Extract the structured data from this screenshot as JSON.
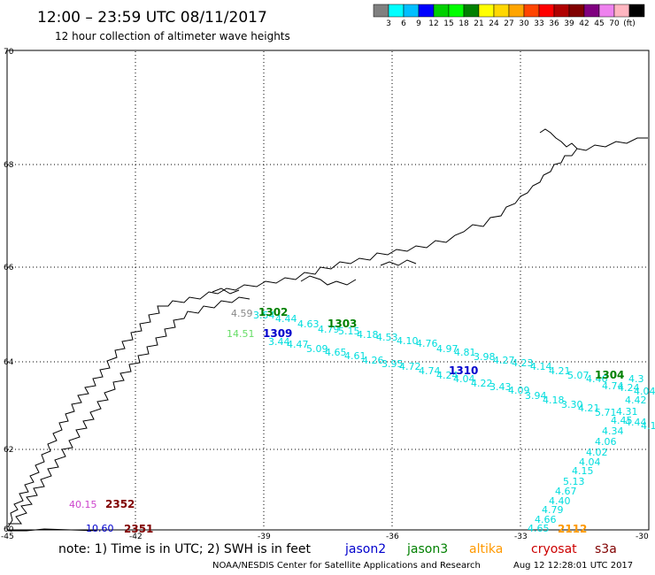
{
  "header": {
    "title": "12:00 – 23:59 UTC 08/11/2017",
    "subtitle": "12 hour collection of altimeter wave heights"
  },
  "color_scale": {
    "colors": [
      "#808080",
      "#00ffff",
      "#00bfff",
      "#0000ff",
      "#00d000",
      "#00ff00",
      "#008000",
      "#ffff00",
      "#ffd700",
      "#ffa500",
      "#ff4500",
      "#ff0000",
      "#b00000",
      "#800000",
      "#800080",
      "#ee82ee",
      "#ffb6c1",
      "#000000"
    ],
    "labels": [
      "3",
      "6",
      "9",
      "12",
      "15",
      "18",
      "21",
      "24",
      "27",
      "30",
      "33",
      "36",
      "39",
      "42",
      "45",
      "70",
      "(ft)"
    ]
  },
  "map": {
    "lat_labels": [
      "70",
      "68",
      "66",
      "64",
      "62",
      "60"
    ],
    "lon_labels": [
      "-45",
      "-42",
      "-39",
      "-36",
      "-33",
      "-30"
    ],
    "coastline_color": "#000000"
  },
  "satellites": {
    "jason2": {
      "name": "jason2",
      "color": "#0000cc"
    },
    "jason3": {
      "name": "jason3",
      "color": "#008000"
    },
    "altika": {
      "name": "altika",
      "color": "#ff9900"
    },
    "cryosat": {
      "name": "cryosat",
      "color": "#cc0000"
    },
    "s3a": {
      "name": "s3a",
      "color": "#800000"
    }
  },
  "pass_times": [
    {
      "text": "1302",
      "color": "#008000"
    },
    {
      "text": "1303",
      "color": "#008000"
    },
    {
      "text": "1309",
      "color": "#0000cc"
    },
    {
      "text": "1310",
      "color": "#0000cc"
    },
    {
      "text": "1304",
      "color": "#008000"
    },
    {
      "text": "2112",
      "color": "#ff9900"
    },
    {
      "text": "2352",
      "color": "#800000"
    },
    {
      "text": "2351",
      "color": "#800000"
    }
  ],
  "wave_heights": [
    {
      "text": "4.59",
      "color": "#888888"
    },
    {
      "text": "3.54",
      "color": "#00dddd"
    },
    {
      "text": "4.44",
      "color": "#00dddd"
    },
    {
      "text": "4.63",
      "color": "#00dddd"
    },
    {
      "text": "4.79",
      "color": "#00dddd"
    },
    {
      "text": "5.15",
      "color": "#00dddd"
    },
    {
      "text": "4.18",
      "color": "#00dddd"
    },
    {
      "text": "4.53",
      "color": "#00dddd"
    },
    {
      "text": "4.10",
      "color": "#00dddd"
    },
    {
      "text": "4.76",
      "color": "#00dddd"
    },
    {
      "text": "4.97",
      "color": "#00dddd"
    },
    {
      "text": "4.81",
      "color": "#00dddd"
    },
    {
      "text": "3.98",
      "color": "#00dddd"
    },
    {
      "text": "4.27",
      "color": "#00dddd"
    },
    {
      "text": "4.23",
      "color": "#00dddd"
    },
    {
      "text": "4.14",
      "color": "#00dddd"
    },
    {
      "text": "4.21",
      "color": "#00dddd"
    },
    {
      "text": "5.07",
      "color": "#00dddd"
    },
    {
      "text": "4.46",
      "color": "#00dddd"
    },
    {
      "text": "4.3",
      "color": "#00dddd"
    },
    {
      "text": "14.51",
      "color": "#66dd66"
    },
    {
      "text": "3.44",
      "color": "#00dddd"
    },
    {
      "text": "4.47",
      "color": "#00dddd"
    },
    {
      "text": "5.09",
      "color": "#00dddd"
    },
    {
      "text": "4.65",
      "color": "#00dddd"
    },
    {
      "text": "4.61",
      "color": "#00dddd"
    },
    {
      "text": "4.26",
      "color": "#00dddd"
    },
    {
      "text": "3.95",
      "color": "#00dddd"
    },
    {
      "text": "4.72",
      "color": "#00dddd"
    },
    {
      "text": "4.74",
      "color": "#00dddd"
    },
    {
      "text": "4.24",
      "color": "#00dddd"
    },
    {
      "text": "4.04",
      "color": "#00dddd"
    },
    {
      "text": "4.22",
      "color": "#00dddd"
    },
    {
      "text": "3.43",
      "color": "#00dddd"
    },
    {
      "text": "4.09",
      "color": "#00dddd"
    },
    {
      "text": "3.94",
      "color": "#00dddd"
    },
    {
      "text": "4.18",
      "color": "#00dddd"
    },
    {
      "text": "3.30",
      "color": "#00dddd"
    },
    {
      "text": "4.21",
      "color": "#00dddd"
    },
    {
      "text": "5.71",
      "color": "#00dddd"
    },
    {
      "text": "4.74",
      "color": "#00dddd"
    },
    {
      "text": "4.24",
      "color": "#00dddd"
    },
    {
      "text": "4.04",
      "color": "#00dddd"
    },
    {
      "text": "4.42",
      "color": "#00dddd"
    },
    {
      "text": "4.31",
      "color": "#00dddd"
    },
    {
      "text": "4.45",
      "color": "#00dddd"
    },
    {
      "text": "4.44",
      "color": "#00dddd"
    },
    {
      "text": "4.1",
      "color": "#00dddd"
    },
    {
      "text": "4.34",
      "color": "#00dddd"
    },
    {
      "text": "4.06",
      "color": "#00dddd"
    },
    {
      "text": "4.02",
      "color": "#00dddd"
    },
    {
      "text": "4.04",
      "color": "#00dddd"
    },
    {
      "text": "4.15",
      "color": "#00dddd"
    },
    {
      "text": "5.13",
      "color": "#00dddd"
    },
    {
      "text": "4.67",
      "color": "#00dddd"
    },
    {
      "text": "4.40",
      "color": "#00dddd"
    },
    {
      "text": "4.79",
      "color": "#00dddd"
    },
    {
      "text": "4.66",
      "color": "#00dddd"
    },
    {
      "text": "4.65",
      "color": "#00dddd"
    },
    {
      "text": "40.15",
      "color": "#cc44cc"
    },
    {
      "text": "10.60",
      "color": "#0000cc"
    }
  ],
  "footer": {
    "note": "note:  1) Time is in UTC;  2) SWH is in feet",
    "credit_org": "NOAA/NESDIS Center for Satellite Applications and Research",
    "credit_time": "Aug 12 12:28:01 UTC 2017"
  }
}
